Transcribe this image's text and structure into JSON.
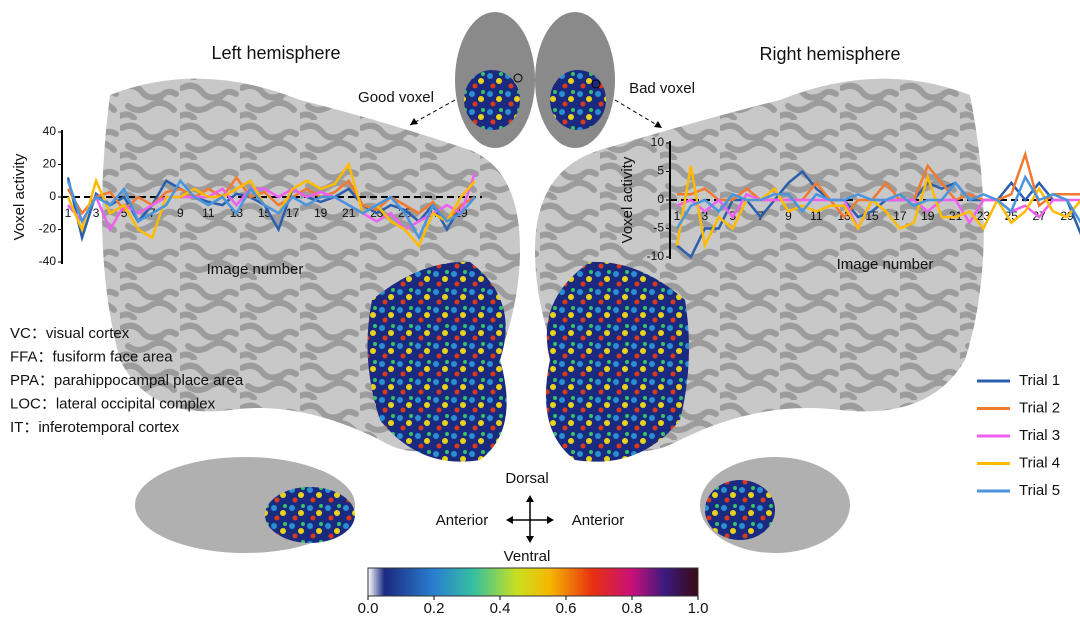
{
  "header": {
    "left_title": "Left hemisphere",
    "right_title": "Right hemisphere",
    "good_voxel": "Good voxel",
    "bad_voxel": "Bad voxel"
  },
  "chart_data": [
    {
      "type": "line",
      "ylabel": "Voxel activity",
      "xlabel": "Image number",
      "x": [
        1,
        2,
        3,
        4,
        5,
        6,
        7,
        8,
        9,
        10,
        11,
        12,
        13,
        14,
        15,
        16,
        17,
        18,
        19,
        20,
        21,
        22,
        23,
        24,
        25,
        26,
        27,
        28,
        29,
        30
      ],
      "xlim": [
        1,
        30
      ],
      "xticks": [
        1,
        3,
        5,
        7,
        9,
        11,
        13,
        15,
        17,
        19,
        21,
        23,
        25,
        27,
        29
      ],
      "ylim": [
        -40,
        40
      ],
      "yticks": [
        -40,
        -20,
        0,
        20,
        40
      ],
      "series": [
        {
          "name": "Trial 1",
          "color": "#2b5fad",
          "values": [
            12,
            -25,
            2,
            -5,
            0,
            -15,
            -5,
            10,
            5,
            0,
            -3,
            -5,
            2,
            0,
            -5,
            -20,
            5,
            0,
            -3,
            0,
            5,
            -5,
            -10,
            -5,
            -8,
            -15,
            -5,
            -20,
            -5,
            0
          ]
        },
        {
          "name": "Trial 2",
          "color": "#f07a30",
          "values": [
            5,
            -10,
            0,
            3,
            -8,
            0,
            -5,
            3,
            5,
            0,
            5,
            0,
            12,
            0,
            3,
            -5,
            0,
            5,
            0,
            3,
            10,
            -5,
            -8,
            0,
            -5,
            -10,
            -3,
            -15,
            -5,
            0
          ]
        },
        {
          "name": "Trial 3",
          "color": "#f060f0",
          "values": [
            -5,
            -15,
            0,
            -20,
            -5,
            -10,
            -5,
            0,
            0,
            0,
            0,
            5,
            -5,
            5,
            5,
            0,
            5,
            0,
            3,
            0,
            -5,
            -10,
            -15,
            -10,
            -20,
            -15,
            -10,
            -5,
            -10,
            15
          ]
        },
        {
          "name": "Trial 4",
          "color": "#ffbb00",
          "values": [
            0,
            -20,
            10,
            -10,
            -5,
            -20,
            -25,
            0,
            0,
            5,
            0,
            0,
            5,
            10,
            -5,
            -10,
            5,
            10,
            5,
            8,
            20,
            -10,
            -5,
            -15,
            -20,
            -30,
            -10,
            -15,
            0,
            10
          ]
        },
        {
          "name": "Trial 5",
          "color": "#4a95dd",
          "values": [
            10,
            -15,
            0,
            -5,
            5,
            -15,
            -10,
            -5,
            10,
            0,
            -5,
            0,
            -10,
            5,
            -5,
            -10,
            0,
            -5,
            0,
            0,
            -5,
            -10,
            -5,
            0,
            -10,
            -25,
            -5,
            -15,
            -10,
            0
          ]
        }
      ]
    },
    {
      "type": "line",
      "ylabel": "Voxel activity",
      "xlabel": "Image number",
      "x": [
        1,
        2,
        3,
        4,
        5,
        6,
        7,
        8,
        9,
        10,
        11,
        12,
        13,
        14,
        15,
        16,
        17,
        18,
        19,
        20,
        21,
        22,
        23,
        24,
        25,
        26,
        27,
        28,
        29,
        30
      ],
      "xlim": [
        1,
        30
      ],
      "xticks": [
        1,
        3,
        5,
        7,
        9,
        11,
        13,
        15,
        17,
        19,
        21,
        23,
        25,
        27,
        29
      ],
      "ylim": [
        -10,
        10
      ],
      "yticks": [
        -10,
        -5,
        0,
        5,
        10
      ],
      "series": [
        {
          "name": "Trial 1",
          "color": "#2b5fad",
          "values": [
            -8,
            -10,
            -5,
            -5,
            0,
            0,
            -3,
            0,
            3,
            5,
            2,
            0,
            0,
            -3,
            -2,
            0,
            0,
            0,
            3,
            2,
            3,
            0,
            0,
            0,
            3,
            0,
            3,
            0,
            0,
            -6
          ]
        },
        {
          "name": "Trial 2",
          "color": "#f07a30",
          "values": [
            1,
            1,
            2,
            0,
            0,
            2,
            0,
            0,
            0,
            0,
            3,
            0,
            -3,
            0,
            0,
            3,
            0,
            0,
            6,
            3,
            0,
            1,
            0,
            0,
            1,
            8,
            -1,
            1,
            1,
            1
          ]
        },
        {
          "name": "Trial 3",
          "color": "#f060f0",
          "values": [
            -1,
            0,
            -2,
            0,
            -3,
            1,
            0,
            0,
            0,
            0,
            0,
            0,
            0,
            -5,
            0,
            0,
            0,
            0,
            -2,
            0,
            0,
            -4,
            0,
            0,
            -2,
            -1,
            -3,
            0,
            0,
            0
          ]
        },
        {
          "name": "Trial 4",
          "color": "#ffbb00",
          "values": [
            -8,
            6,
            -8,
            -3,
            -5,
            0,
            0,
            2,
            -2,
            -1,
            -2,
            -1,
            -1,
            -5,
            0,
            -2,
            -5,
            -4,
            4,
            -3,
            -3,
            -2,
            -5,
            0,
            -4,
            -2,
            2,
            -2,
            -3,
            0
          ]
        },
        {
          "name": "Trial 5",
          "color": "#4a95dd",
          "values": [
            -5,
            -1,
            0,
            -2,
            1,
            0,
            0,
            1,
            1,
            -2,
            1,
            0,
            0,
            1,
            0,
            0,
            1,
            -1,
            0,
            0,
            3,
            0,
            1,
            0,
            -2,
            4,
            0,
            1,
            0,
            -4
          ]
        }
      ]
    }
  ],
  "glossary": [
    "VC：visual cortex",
    "FFA：fusiform face area",
    "PPA：parahippocampal place area",
    "LOC：lateral occipital complex",
    "IT：inferotemporal cortex"
  ],
  "directions": {
    "dorsal": "Dorsal",
    "ventral": "Ventral",
    "anterior_left": "Anterior",
    "anterior_right": "Anterior"
  },
  "colorbar": {
    "ticks": [
      {
        "value": 0,
        "label": "0.0"
      },
      0.2,
      0.4,
      0.6,
      0.8,
      {
        "value": 1,
        "label": "1.0"
      }
    ]
  }
}
